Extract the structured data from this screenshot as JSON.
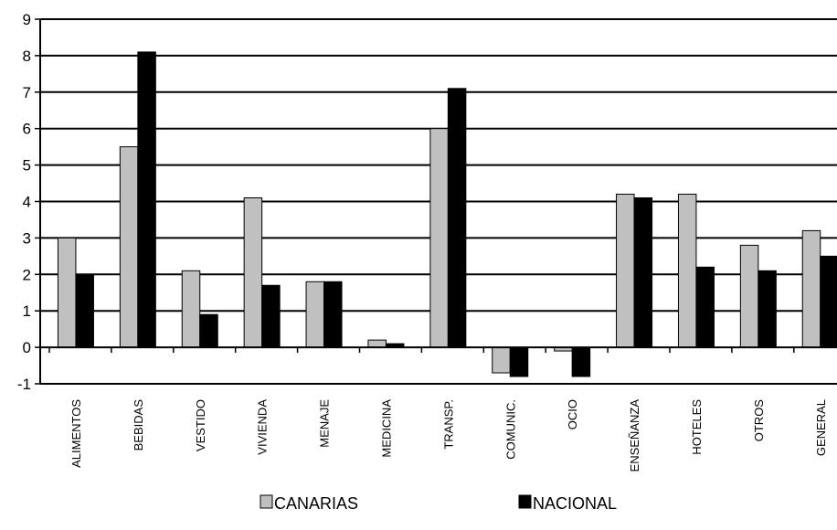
{
  "chart_data": {
    "type": "bar",
    "categories": [
      "ALIMENTOS",
      "BEBIDAS",
      "VESTIDO",
      "VIVIENDA",
      "MENAJE",
      "MEDICINA",
      "TRANSP.",
      "COMUNIC.",
      "OCIO",
      "ENSEÑANZA",
      "HOTELES",
      "OTROS",
      "GENERAL"
    ],
    "series": [
      {
        "name": "CANARIAS",
        "color": "#c0c0c0",
        "values": [
          3.0,
          5.5,
          2.1,
          4.1,
          1.8,
          0.2,
          6.0,
          -0.7,
          -0.1,
          4.2,
          4.2,
          2.8,
          3.2
        ]
      },
      {
        "name": "NACIONAL",
        "color": "#000000",
        "values": [
          2.0,
          8.1,
          0.9,
          1.7,
          1.8,
          0.1,
          7.1,
          -0.8,
          -0.8,
          4.1,
          2.2,
          2.1,
          2.5
        ]
      }
    ],
    "yticks": [
      "9",
      "8",
      "7",
      "6",
      "5",
      "4",
      "3",
      "2",
      "1",
      "0",
      "-1"
    ],
    "ylim": [
      -1,
      9
    ],
    "grid": true,
    "legend_position": "bottom",
    "title": "",
    "xlabel": "",
    "ylabel": ""
  }
}
